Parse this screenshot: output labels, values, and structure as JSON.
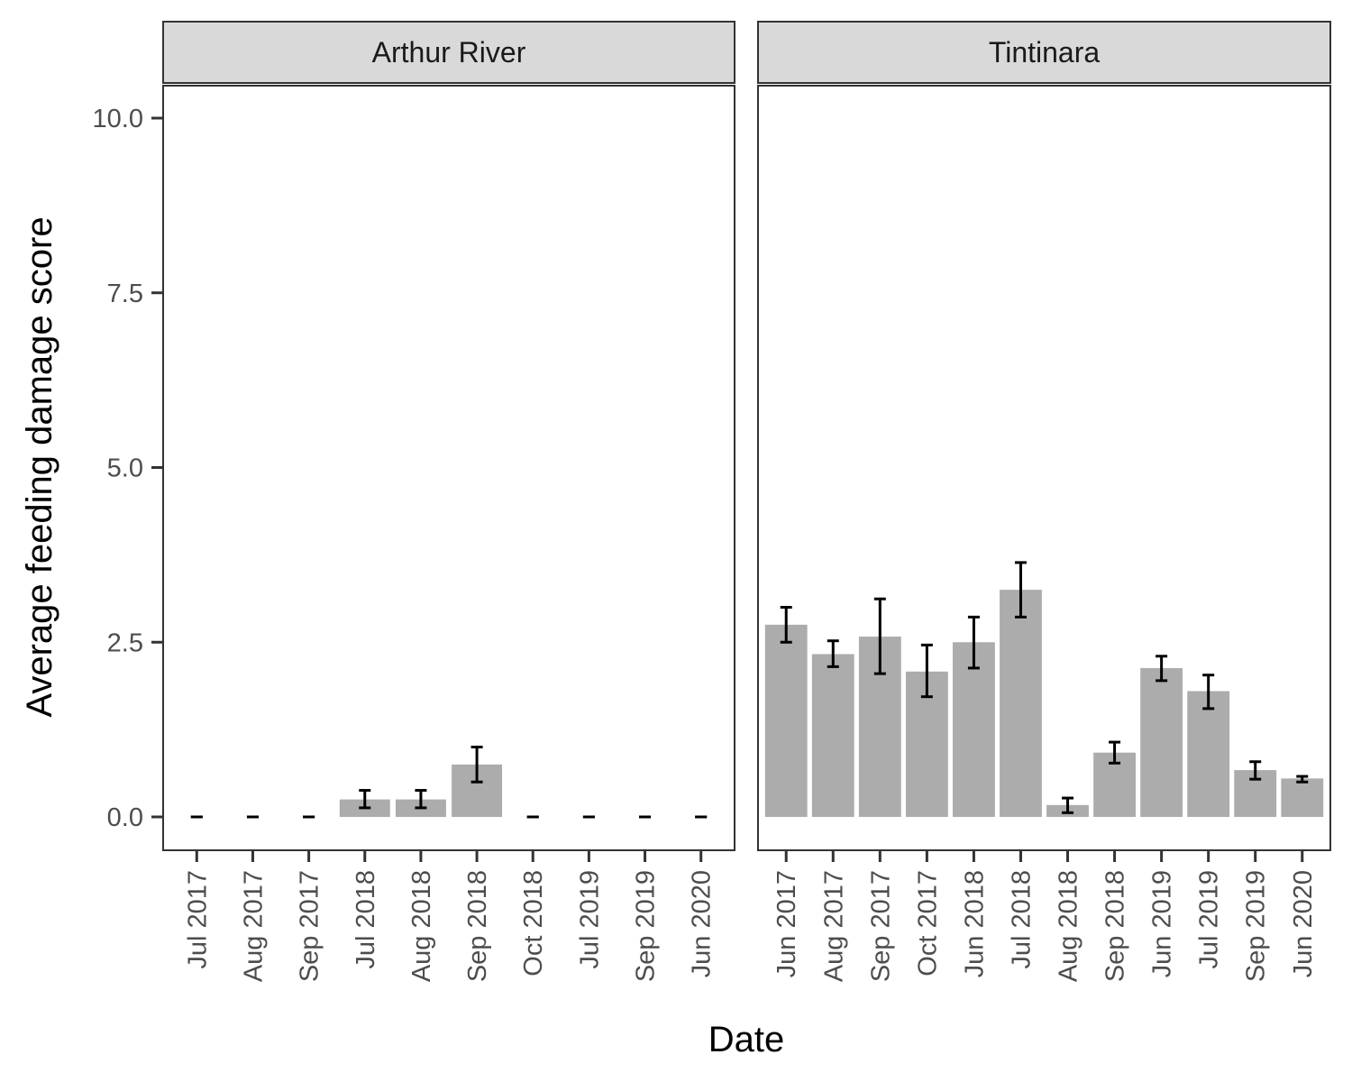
{
  "chart_data": {
    "type": "bar",
    "xlabel": "Date",
    "ylabel": "Average feeding damage score",
    "ylim": [
      0,
      10
    ],
    "yticks": [
      "0.0",
      "2.5",
      "5.0",
      "7.5",
      "10.0"
    ],
    "grid": false,
    "bar_color": "#acacac",
    "error_bars": true,
    "panels": [
      {
        "name": "Arthur River",
        "categories": [
          "Jul 2017",
          "Aug 2017",
          "Sep 2017",
          "Jul 2018",
          "Aug 2018",
          "Sep 2018",
          "Oct 2018",
          "Jul 2019",
          "Sep 2019",
          "Jun 2020"
        ],
        "values": [
          0,
          0,
          0,
          0.25,
          0.25,
          0.75,
          0,
          0,
          0,
          0
        ],
        "error_low": [
          0,
          0,
          0,
          0.13,
          0.13,
          0.5,
          0,
          0,
          0,
          0
        ],
        "error_high": [
          0,
          0,
          0,
          0.38,
          0.38,
          1.0,
          0,
          0,
          0,
          0
        ]
      },
      {
        "name": "Tintinara",
        "categories": [
          "Jun 2017",
          "Aug 2017",
          "Sep 2017",
          "Oct 2017",
          "Jun 2018",
          "Jul 2018",
          "Aug 2018",
          "Sep 2018",
          "Jun 2019",
          "Jul 2019",
          "Sep 2019",
          "Jun 2020"
        ],
        "values": [
          2.75,
          2.33,
          2.58,
          2.08,
          2.5,
          3.25,
          0.17,
          0.92,
          2.13,
          1.8,
          0.67,
          0.55
        ],
        "error_low": [
          2.5,
          2.15,
          2.05,
          1.72,
          2.13,
          2.86,
          0.06,
          0.77,
          1.95,
          1.55,
          0.54,
          0.5
        ],
        "error_high": [
          3.0,
          2.52,
          3.12,
          2.46,
          2.86,
          3.64,
          0.27,
          1.07,
          2.3,
          2.03,
          0.79,
          0.58
        ]
      }
    ]
  }
}
